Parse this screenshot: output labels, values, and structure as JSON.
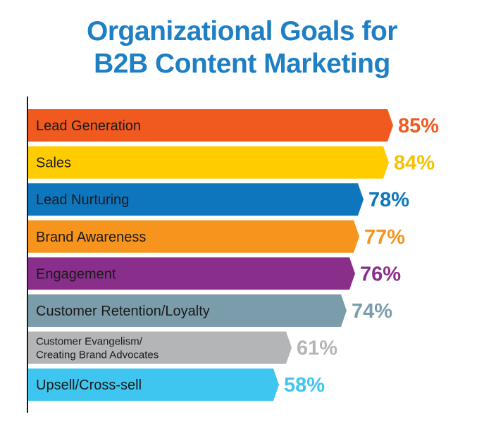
{
  "title": {
    "line1": "Organizational Goals for",
    "line2": "B2B Content Marketing"
  },
  "colors": {
    "title": "#1e7fc4",
    "axis": "#1a1a1a"
  },
  "chart_data": {
    "type": "bar",
    "orientation": "horizontal",
    "title": "Organizational Goals for B2B Content Marketing",
    "unit": "%",
    "xlim": [
      0,
      100
    ],
    "grid": false,
    "legend": "none",
    "categories": [
      "Lead Generation",
      "Sales",
      "Lead Nurturing",
      "Brand Awareness",
      "Engagement",
      "Customer Retention/Loyalty",
      "Customer Evangelism/\nCreating Brand Advocates",
      "Upsell/Cross-sell"
    ],
    "values": [
      85,
      84,
      78,
      77,
      76,
      74,
      61,
      58
    ],
    "value_labels": [
      "85%",
      "84%",
      "78%",
      "77%",
      "76%",
      "74%",
      "61%",
      "58%"
    ],
    "colors": [
      "#f15a1f",
      "#ffcc00",
      "#0d76bd",
      "#f7941d",
      "#8a2e8c",
      "#7b9cab",
      "#b3b5b6",
      "#3ec6f0"
    ],
    "label_colors": [
      "#f15a1f",
      "#f7c100",
      "#0d76bd",
      "#f7941d",
      "#8a2e8c",
      "#7b9cab",
      "#b3b5b6",
      "#3ec6f0"
    ]
  }
}
